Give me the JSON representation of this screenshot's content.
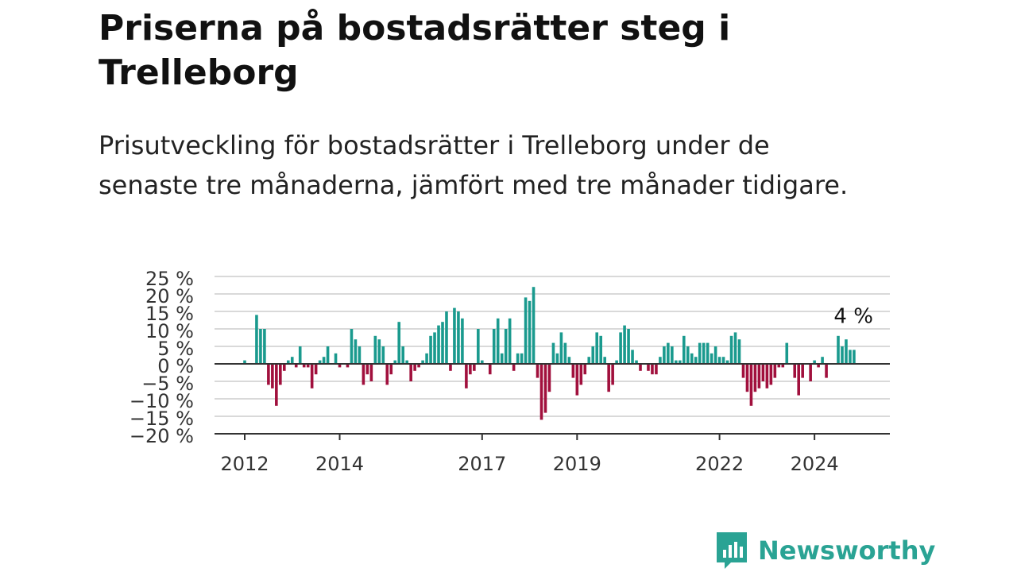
{
  "title": "Priserna på bostadsrätter steg i Trelleborg",
  "subtitle": "Prisutveckling för bostadsrätter i Trelleborg under de senaste tre månaderna, jämfört med tre månader tidigare.",
  "brand": {
    "name": "Newsworthy"
  },
  "colors": {
    "positive": "#1a9a8e",
    "negative": "#a1103d",
    "brand": "#2aa394",
    "grid": "#d9d9d9",
    "axis": "#333333"
  },
  "chart_data": {
    "type": "bar",
    "start": "2012-01",
    "frequency": "monthly",
    "values": [
      1,
      0,
      0,
      14,
      10,
      10,
      -6,
      -7,
      -12,
      -6,
      -2,
      1,
      2,
      -1,
      5,
      -1,
      -1,
      -7,
      -3,
      1,
      2,
      5,
      0,
      3,
      -1,
      0,
      -1,
      10,
      7,
      5,
      -6,
      -3,
      -5,
      8,
      7,
      5,
      -6,
      -3,
      1,
      12,
      5,
      1,
      -5,
      -2,
      -1,
      1,
      3,
      8,
      9,
      11,
      12,
      15,
      -2,
      16,
      15,
      13,
      -7,
      -3,
      -2,
      10,
      1,
      0,
      -3,
      10,
      13,
      3,
      10,
      13,
      -2,
      3,
      3,
      19,
      18,
      22,
      -4,
      -16,
      -14,
      -8,
      6,
      3,
      9,
      6,
      2,
      -4,
      -9,
      -6,
      -3,
      2,
      5,
      9,
      8,
      2,
      -8,
      -6,
      1,
      9,
      11,
      10,
      4,
      1,
      -2,
      0,
      -2,
      -3,
      -3,
      2,
      5,
      6,
      5,
      1,
      1,
      8,
      5,
      3,
      2,
      6,
      6,
      6,
      3,
      5,
      2,
      2,
      1,
      8,
      9,
      7,
      -4,
      -8,
      -12,
      -8,
      -7,
      -5,
      -7,
      -6,
      -4,
      -1,
      -1,
      6,
      0,
      -4,
      -9,
      -4,
      0,
      -5,
      1,
      -1,
      2,
      -4,
      0,
      0,
      8,
      5,
      7,
      4,
      4
    ],
    "annotation": {
      "text": "4 %"
    },
    "ylim": [
      -20,
      25
    ],
    "yticks": [
      25,
      20,
      15,
      10,
      5,
      0,
      -5,
      -10,
      -15,
      -20
    ],
    "ytick_labels": [
      "25 %",
      "20 %",
      "15 %",
      "10 %",
      "5 %",
      "0 %",
      "−5 %",
      "−10 %",
      "−15 %",
      "−20 %"
    ],
    "xticks": [
      {
        "label": "2012",
        "date": "2012-01"
      },
      {
        "label": "2014",
        "date": "2014-01"
      },
      {
        "label": "2017",
        "date": "2017-01"
      },
      {
        "label": "2019",
        "date": "2019-01"
      },
      {
        "label": "2022",
        "date": "2022-01"
      },
      {
        "label": "2024",
        "date": "2024-01"
      }
    ],
    "grid": true,
    "legend": "none"
  }
}
